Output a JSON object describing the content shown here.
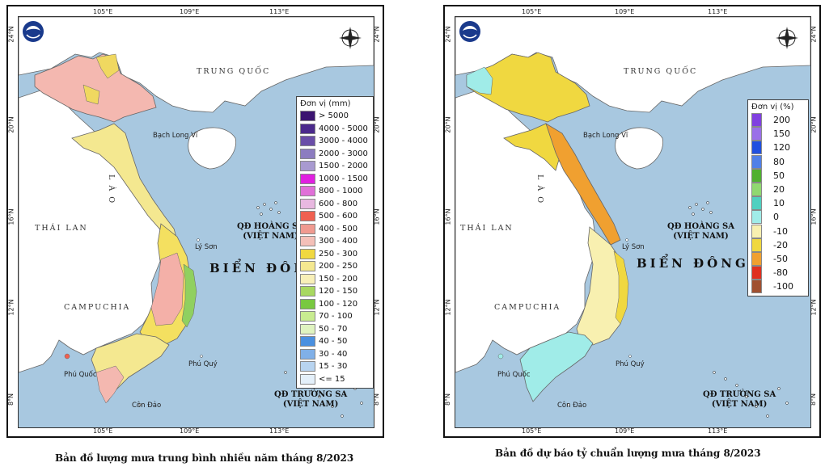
{
  "left_map": {
    "longitude_ticks": [
      "105°E",
      "109°E",
      "113°E"
    ],
    "latitude_ticks": [
      "24°N",
      "20°N",
      "16°N",
      "12°N",
      "8°N"
    ],
    "places": {
      "china": "TRUNG QUỐC",
      "laos": "L À O",
      "thailand": "THÁI LAN",
      "cambodia": "CAMPUCHIA",
      "bach_long_vi": "Bạch Long Vĩ",
      "ly_son": "Lý Sơn",
      "phu_quy": "Phú Quý",
      "phu_quoc": "Phú Quốc",
      "con_dao": "Côn Đảo",
      "hoang_sa": "QĐ HOÀNG SA\n(VIỆT NAM)",
      "truong_sa": "QĐ TRƯỜNG SA\n(VIỆT NAM)",
      "bien_dong": "BIỂN ĐÔNG"
    },
    "legend": {
      "title": "Đơn vị (mm)",
      "items": [
        {
          "label": "> 5000",
          "color": "#3b1470"
        },
        {
          "label": "4000 - 5000",
          "color": "#4b2a8c"
        },
        {
          "label": "3000 - 4000",
          "color": "#6a4ea8"
        },
        {
          "label": "2000 - 3000",
          "color": "#8c7cc0"
        },
        {
          "label": "1500 - 2000",
          "color": "#a89ad0"
        },
        {
          "label": "1000 - 1500",
          "color": "#e020e0"
        },
        {
          "label": "800 - 1000",
          "color": "#e070d8"
        },
        {
          "label": "600 - 800",
          "color": "#e8b8e0"
        },
        {
          "label": "500 - 600",
          "color": "#f06050"
        },
        {
          "label": "400 - 500",
          "color": "#f09a90"
        },
        {
          "label": "300 - 400",
          "color": "#f4c0b8"
        },
        {
          "label": "250 - 300",
          "color": "#f0d840"
        },
        {
          "label": "200 - 250",
          "color": "#f4e890"
        },
        {
          "label": "150 - 200",
          "color": "#f8f0b8"
        },
        {
          "label": "120 - 150",
          "color": "#a8d860"
        },
        {
          "label": "100 - 120",
          "color": "#78c840"
        },
        {
          "label": "70 - 100",
          "color": "#c8ec90"
        },
        {
          "label": "50 - 70",
          "color": "#e0f4c0"
        },
        {
          "label": "40 - 50",
          "color": "#4a90e0"
        },
        {
          "label": "30 - 40",
          "color": "#80b0e8"
        },
        {
          "label": "15 - 30",
          "color": "#b8d4f0"
        },
        {
          "label": "<= 15",
          "color": "#e4f0fa"
        }
      ]
    },
    "caption": "Bản đồ lượng mưa trung bình nhiều năm tháng 8/2023"
  },
  "right_map": {
    "longitude_ticks": [
      "105°E",
      "109°E",
      "113°E"
    ],
    "latitude_ticks": [
      "24°N",
      "20°N",
      "16°N",
      "12°N",
      "8°N"
    ],
    "places": {
      "china": "TRUNG QUỐC",
      "laos": "L À O",
      "thailand": "THÁI LAN",
      "cambodia": "CAMPUCHIA",
      "bach_long_vi": "Bạch Long Vĩ",
      "ly_son": "Lý Sơn",
      "phu_quy": "Phú Quý",
      "phu_quoc": "Phú Quốc",
      "con_dao": "Côn Đảo",
      "hoang_sa": "QĐ HOÀNG SA\n(VIỆT NAM)",
      "truong_sa": "QĐ TRƯỜNG SA\n(VIỆT NAM)",
      "bien_dong": "BIỂN ĐÔNG"
    },
    "legend": {
      "title": "Đơn vị (%)",
      "items": [
        {
          "label": "200",
          "color": "#8040e0"
        },
        {
          "label": "150",
          "color": "#9a70e8"
        },
        {
          "label": "120",
          "color": "#2050e0"
        },
        {
          "label": "80",
          "color": "#5080e8"
        },
        {
          "label": "50",
          "color": "#50b030"
        },
        {
          "label": "20",
          "color": "#90d870"
        },
        {
          "label": "10",
          "color": "#50d0c0"
        },
        {
          "label": "0",
          "color": "#a0ece8"
        },
        {
          "label": "-10",
          "color": "#f8f0b0"
        },
        {
          "label": "-20",
          "color": "#f0d840"
        },
        {
          "label": "-50",
          "color": "#f0a030"
        },
        {
          "label": "-80",
          "color": "#e03020"
        },
        {
          "label": "-100",
          "color": "#a05030"
        }
      ]
    },
    "caption": "Bản đồ dự báo tỷ chuẩn lượng mưa tháng 8/2023"
  },
  "colors": {
    "sea": "#a8c8e0",
    "land_other": "#ffffff",
    "border": "#555555"
  }
}
